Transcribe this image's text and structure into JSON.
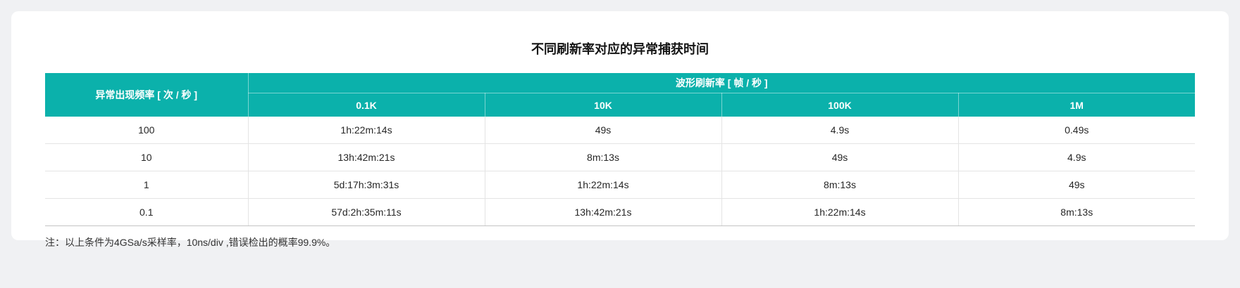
{
  "colors": {
    "page_background": "#f0f1f3",
    "card_background": "#ffffff",
    "header_teal": "#0bb1ab",
    "grid_line": "#e4e4e4",
    "table_bottom_rule": "#c3c3c3",
    "body_text": "#262626"
  },
  "title": "不同刷新率对应的异常捕获时间",
  "table": {
    "row_axis_header": "异常出现频率 [ 次 / 秒 ]",
    "col_group_header": "波形刷新率 [ 帧 / 秒 ]",
    "col_headers": [
      "0.1K",
      "10K",
      "100K",
      "1M"
    ],
    "rows": [
      {
        "freq": "100",
        "values": [
          "1h:22m:14s",
          "49s",
          "4.9s",
          "0.49s"
        ]
      },
      {
        "freq": "10",
        "values": [
          "13h:42m:21s",
          "8m:13s",
          "49s",
          "4.9s"
        ]
      },
      {
        "freq": "1",
        "values": [
          "5d:17h:3m:31s",
          "1h:22m:14s",
          "8m:13s",
          "49s"
        ]
      },
      {
        "freq": "0.1",
        "values": [
          "57d:2h:35m:11s",
          "13h:42m:21s",
          "1h:22m:14s",
          "8m:13s"
        ]
      }
    ]
  },
  "footnote": "注：以上条件为4GSa/s采样率，10ns/div ,错误检出的概率99.9%。"
}
